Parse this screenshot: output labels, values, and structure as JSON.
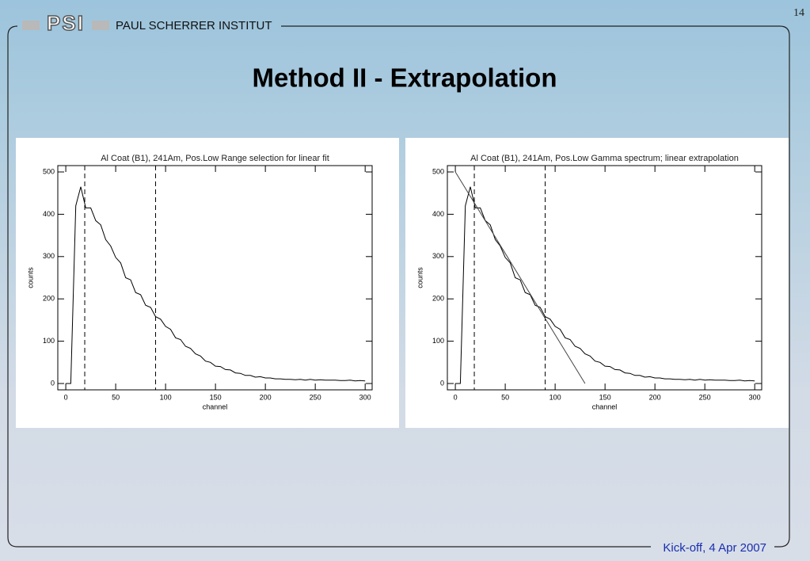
{
  "header": {
    "logo": "PSI",
    "institute": "PAUL SCHERRER INSTITUT",
    "page_number": "14"
  },
  "title": "Method II - Extrapolation",
  "footer": "Kick-off, 4 Apr 2007",
  "chart_data": [
    {
      "type": "line",
      "title": "Al Coat (B1), 241Am, Pos.Low Range selection for linear fit",
      "x_label": "channel",
      "y_label": "counts",
      "x": [
        0,
        5,
        10,
        15,
        20,
        25,
        30,
        35,
        40,
        45,
        50,
        55,
        60,
        65,
        70,
        75,
        80,
        85,
        90,
        95,
        100,
        105,
        110,
        115,
        120,
        125,
        130,
        135,
        140,
        145,
        150,
        155,
        160,
        165,
        170,
        175,
        180,
        185,
        190,
        195,
        200,
        205,
        210,
        215,
        220,
        225,
        230,
        235,
        240,
        245,
        250,
        255,
        260,
        265,
        270,
        275,
        280,
        285,
        290,
        295,
        300
      ],
      "series": [
        {
          "color": "#000000",
          "values": [
            0,
            0,
            420,
            465,
            415,
            415,
            385,
            375,
            340,
            325,
            298,
            285,
            250,
            245,
            215,
            210,
            185,
            180,
            158,
            152,
            135,
            128,
            108,
            104,
            88,
            83,
            70,
            65,
            53,
            50,
            41,
            40,
            33,
            32,
            25,
            24,
            19,
            19,
            15,
            16,
            13,
            13,
            11,
            11,
            10,
            10,
            9,
            10,
            8,
            10,
            8,
            9,
            8,
            8,
            8,
            7,
            7,
            8,
            6,
            7,
            6
          ]
        }
      ],
      "markers": [
        19,
        90
      ],
      "xlim": [
        -8,
        307
      ],
      "ylim": [
        -15,
        515
      ],
      "xticks": [
        0,
        50,
        100,
        150,
        200,
        250,
        300
      ],
      "yticks": [
        0,
        100,
        200,
        300,
        400,
        500
      ]
    },
    {
      "type": "line",
      "title": "Al Coat (B1), 241Am, Pos.Low Gamma spectrum; linear extrapolation",
      "x_label": "channel",
      "y_label": "counts",
      "x": [
        0,
        5,
        10,
        15,
        20,
        25,
        30,
        35,
        40,
        45,
        50,
        55,
        60,
        65,
        70,
        75,
        80,
        85,
        90,
        95,
        100,
        105,
        110,
        115,
        120,
        125,
        130,
        135,
        140,
        145,
        150,
        155,
        160,
        165,
        170,
        175,
        180,
        185,
        190,
        195,
        200,
        205,
        210,
        215,
        220,
        225,
        230,
        235,
        240,
        245,
        250,
        255,
        260,
        265,
        270,
        275,
        280,
        285,
        290,
        295,
        300
      ],
      "series": [
        {
          "color": "#000000",
          "values": [
            0,
            0,
            420,
            465,
            415,
            415,
            385,
            375,
            340,
            325,
            298,
            285,
            250,
            245,
            215,
            210,
            185,
            180,
            158,
            152,
            135,
            128,
            108,
            104,
            88,
            83,
            70,
            65,
            53,
            50,
            41,
            40,
            33,
            32,
            25,
            24,
            19,
            19,
            15,
            16,
            13,
            13,
            11,
            11,
            10,
            10,
            9,
            10,
            8,
            10,
            8,
            9,
            8,
            8,
            8,
            7,
            7,
            8,
            6,
            7,
            6
          ]
        },
        {
          "color": "#444444",
          "x": [
            0,
            130
          ],
          "values": [
            500,
            0
          ]
        }
      ],
      "markers": [
        19,
        90
      ],
      "xlim": [
        -8,
        307
      ],
      "ylim": [
        -15,
        515
      ],
      "xticks": [
        0,
        50,
        100,
        150,
        200,
        250,
        300
      ],
      "yticks": [
        0,
        100,
        200,
        300,
        400,
        500
      ]
    }
  ]
}
